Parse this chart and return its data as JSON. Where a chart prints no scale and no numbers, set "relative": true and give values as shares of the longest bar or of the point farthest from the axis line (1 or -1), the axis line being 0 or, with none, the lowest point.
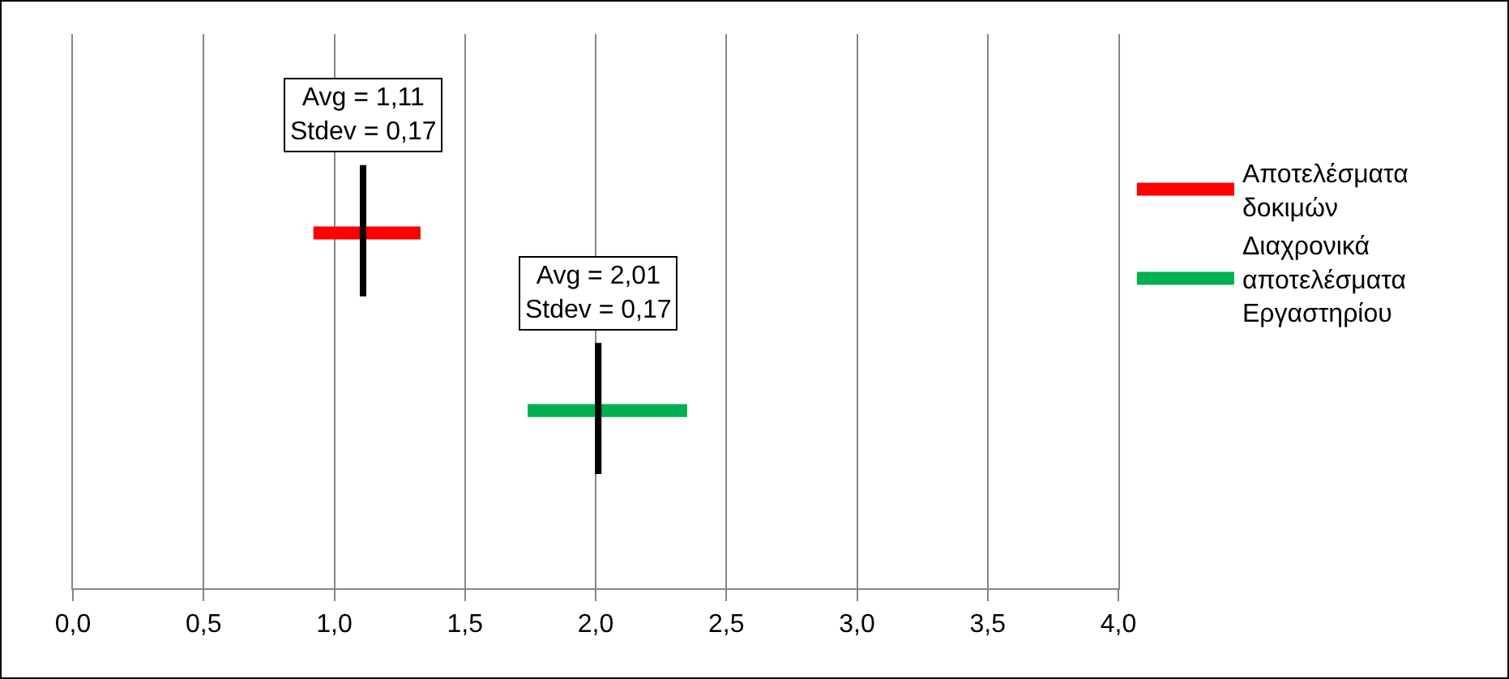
{
  "chart_data": {
    "type": "line",
    "relative": true,
    "xlim": [
      0,
      4
    ],
    "xticks": [
      {
        "value": 0,
        "label": "0,0"
      },
      {
        "value": 0.5,
        "label": "0,5"
      },
      {
        "value": 1,
        "label": "1,0"
      },
      {
        "value": 1.5,
        "label": "1,5"
      },
      {
        "value": 2,
        "label": "2,0"
      },
      {
        "value": 2.5,
        "label": "2,5"
      },
      {
        "value": 3,
        "label": "3,0"
      },
      {
        "value": 3.5,
        "label": "3,5"
      },
      {
        "value": 4,
        "label": "4,0"
      }
    ],
    "series": [
      {
        "name": "Αποτελέσματα δοκιμών",
        "color": "#ff0000",
        "x": [
          0.92,
          1.33
        ],
        "values": [
          0.84,
          0.84
        ]
      },
      {
        "name": "Διαχρονικά αποτελέσματα Εργαστηρίου",
        "color": "#00b050",
        "x": [
          1.74,
          2.35
        ],
        "values": [
          0.42,
          0.42
        ]
      },
      {
        "color": "#000000",
        "x": [
          1.11,
          1.11
        ],
        "values": [
          1,
          0.69
        ]
      },
      {
        "color": "#000000",
        "x": [
          2.01,
          2.01
        ],
        "values": [
          0.58,
          0.27
        ]
      }
    ],
    "annotations": [
      {
        "text": "Avg = 1,11\nStdev = 0,17",
        "x": 1.11,
        "y": 1
      },
      {
        "text": "Avg = 2,01\nStdev = 0,17",
        "x": 2.01,
        "y": 0.58
      }
    ],
    "grid": "x",
    "legend": "right",
    "marker": "none",
    "line_style": "solid"
  }
}
